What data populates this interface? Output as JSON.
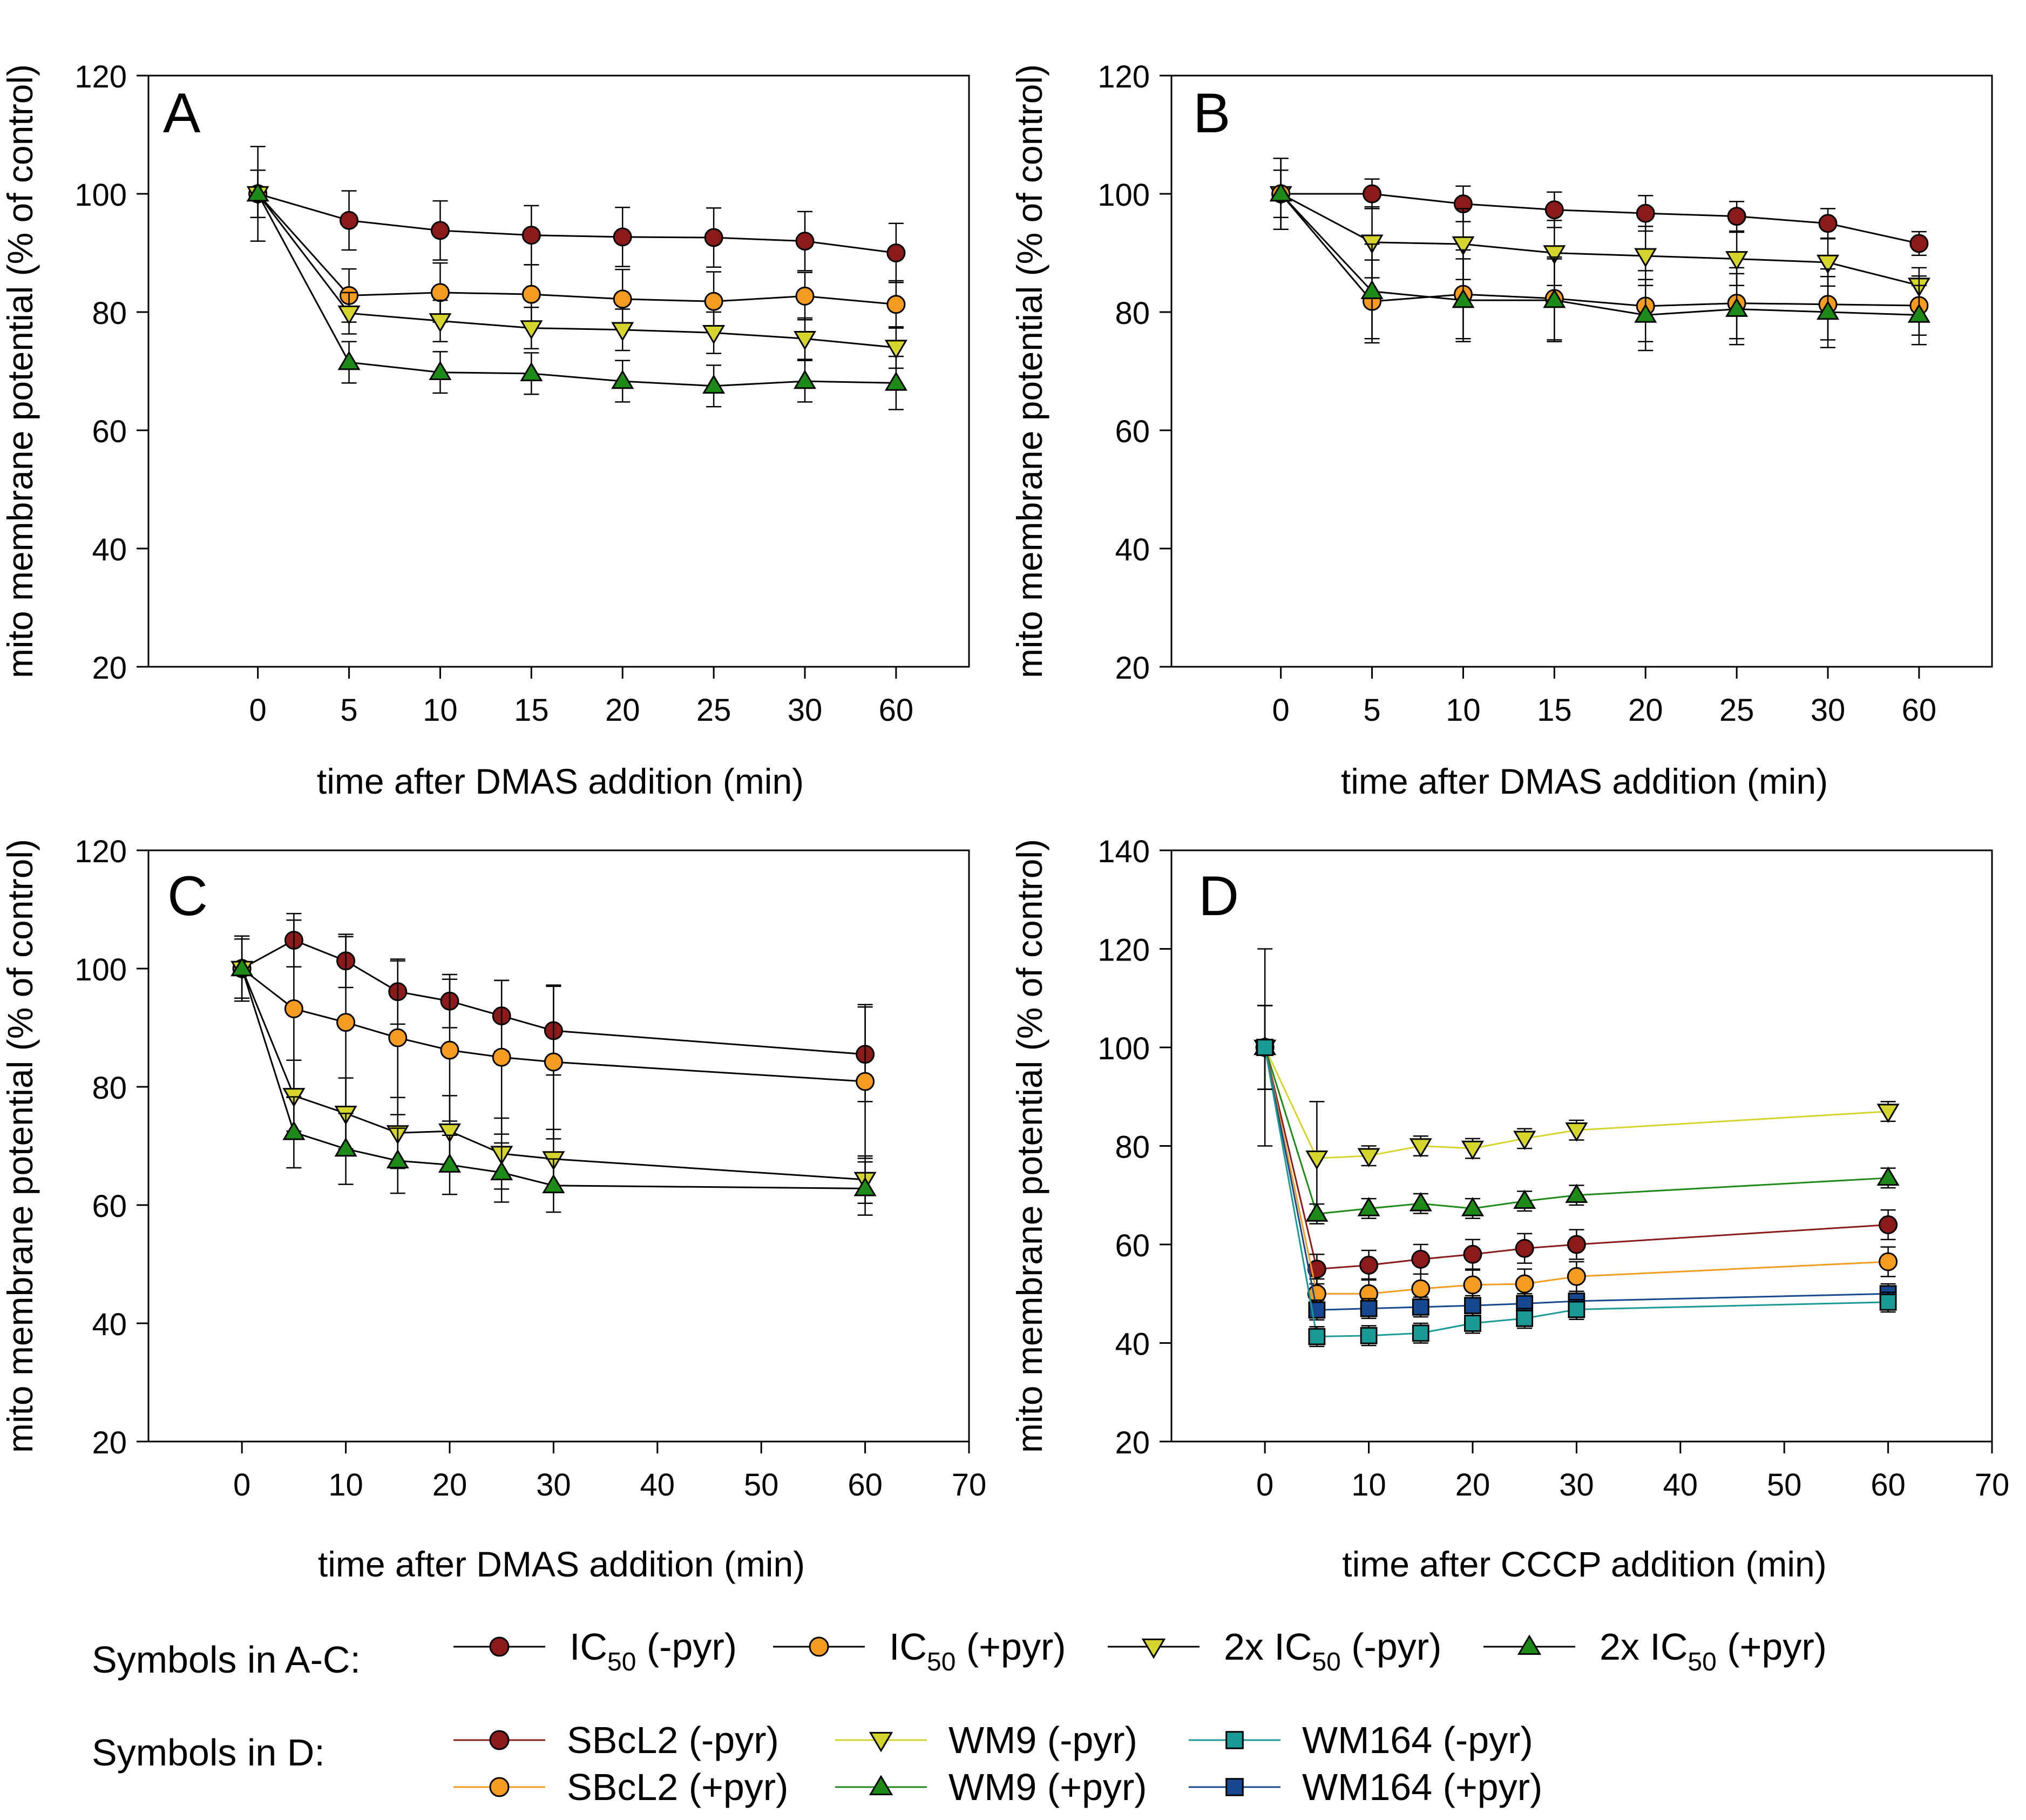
{
  "colors": {
    "ic50_minus": "#8B1A1A",
    "ic50_plus": "#F39C1F",
    "x2_minus": "#D6D52E",
    "x2_plus": "#1E8A18",
    "sbcl2_minus": "#8B1A1A",
    "sbcl2_plus": "#F39C1F",
    "wm9_minus": "#D6D52E",
    "wm9_plus": "#1E8A18",
    "wm164_minus": "#1A9A96",
    "wm164_plus": "#17478F"
  },
  "chart_data": [
    {
      "panel": "A",
      "type": "line",
      "ylabel": "mito membrane potential (% of control)",
      "xlabel": "time after DMAS addition (min)",
      "categorical_x": true,
      "xticks": [
        "0",
        "5",
        "10",
        "15",
        "20",
        "25",
        "30",
        "60"
      ],
      "ylim": [
        20,
        120
      ],
      "yticks": [
        20,
        40,
        60,
        80,
        100,
        120
      ],
      "series": [
        {
          "name": "IC50 (-pyr)",
          "color_key": "ic50_minus",
          "marker": "circle",
          "values": [
            100,
            95.5,
            93.8,
            93,
            92.7,
            92.6,
            92,
            90
          ],
          "errors": [
            4,
            5,
            5,
            5,
            5,
            5,
            5,
            5
          ]
        },
        {
          "name": "IC50 (+pyr)",
          "color_key": "ic50_plus",
          "marker": "circle",
          "values": [
            100,
            82.8,
            83.3,
            83,
            82.2,
            81.8,
            82.7,
            81.3
          ],
          "errors": [
            8,
            4.5,
            5,
            5,
            5,
            5,
            4,
            4
          ]
        },
        {
          "name": "2x IC50 (-pyr)",
          "color_key": "x2_minus",
          "marker": "triangle-down",
          "values": [
            100,
            79.8,
            78.5,
            77.3,
            77,
            76.5,
            75.5,
            74
          ],
          "errors": [
            4,
            3.5,
            3.5,
            3.5,
            3.5,
            3.5,
            3.5,
            3.5
          ]
        },
        {
          "name": "2x IC50 (+pyr)",
          "color_key": "x2_plus",
          "marker": "triangle-up",
          "values": [
            100,
            71.5,
            69.8,
            69.6,
            68.3,
            67.5,
            68.3,
            68
          ],
          "errors": [
            4,
            3.5,
            3.5,
            3.5,
            3.5,
            3.5,
            3.5,
            4.5
          ]
        }
      ]
    },
    {
      "panel": "B",
      "type": "line",
      "ylabel": "mito membrane potential (% of control)",
      "xlabel": "time after DMAS addition (min)",
      "categorical_x": true,
      "xticks": [
        "0",
        "5",
        "10",
        "15",
        "20",
        "25",
        "30",
        "60"
      ],
      "ylim": [
        20,
        120
      ],
      "yticks": [
        20,
        40,
        60,
        80,
        100,
        120
      ],
      "series": [
        {
          "name": "IC50 (-pyr)",
          "color_key": "ic50_minus",
          "marker": "circle",
          "values": [
            100,
            100,
            98.3,
            97.3,
            96.7,
            96.2,
            95,
            91.6
          ],
          "errors": [
            4,
            2.5,
            3,
            3,
            3,
            2.5,
            2.5,
            2
          ]
        },
        {
          "name": "2x IC50 (-pyr)",
          "color_key": "x2_minus",
          "marker": "triangle-down",
          "values": [
            100,
            91.8,
            91.5,
            90,
            89.5,
            89,
            88.4,
            84.5
          ],
          "errors": [
            6,
            6,
            6,
            5.5,
            5,
            4.5,
            4,
            3
          ]
        },
        {
          "name": "IC50 (+pyr)",
          "color_key": "ic50_plus",
          "marker": "circle",
          "values": [
            100,
            81.8,
            83,
            82.3,
            81,
            81.5,
            81.3,
            81.1
          ],
          "errors": [
            6,
            7,
            7.5,
            7,
            6,
            6,
            6,
            5
          ]
        },
        {
          "name": "2x IC50 (+pyr)",
          "color_key": "x2_plus",
          "marker": "triangle-up",
          "values": [
            100,
            83.5,
            82,
            82,
            79.5,
            80.5,
            80,
            79.5
          ],
          "errors": [
            6,
            8,
            7,
            7,
            6,
            6,
            6,
            5
          ]
        }
      ]
    },
    {
      "panel": "C",
      "type": "line",
      "ylabel": "mito membrane potential (% of control)",
      "xlabel": "time after DMAS addition (min)",
      "categorical_x": false,
      "xlim": [
        -9,
        70
      ],
      "xticks": [
        0,
        10,
        20,
        30,
        40,
        50,
        60,
        70
      ],
      "ylim": [
        20,
        120
      ],
      "yticks": [
        20,
        40,
        60,
        80,
        100,
        120
      ],
      "series": [
        {
          "name": "IC50 (-pyr)",
          "color_key": "ic50_minus",
          "marker": "circle",
          "x": [
            0,
            5,
            10,
            15,
            20,
            25,
            30,
            60
          ],
          "values": [
            100,
            104.8,
            101.3,
            96.1,
            94.5,
            92,
            89.5,
            85.5
          ],
          "errors": [
            5.5,
            4.5,
            4.5,
            5.5,
            4.5,
            6,
            7.5,
            8
          ]
        },
        {
          "name": "IC50 (+pyr)",
          "color_key": "ic50_plus",
          "marker": "circle",
          "x": [
            0,
            5,
            10,
            15,
            20,
            25,
            30,
            60
          ],
          "values": [
            100,
            93.2,
            90.9,
            88.3,
            86.2,
            85,
            84.2,
            80.9
          ],
          "errors": [
            5.5,
            15,
            14.5,
            13,
            12,
            13,
            13,
            13
          ]
        },
        {
          "name": "2x IC50 (-pyr)",
          "color_key": "x2_minus",
          "marker": "triangle-down",
          "x": [
            0,
            5,
            10,
            15,
            20,
            25,
            30,
            60
          ],
          "values": [
            100,
            78.5,
            75.5,
            72.2,
            72.5,
            68.7,
            67.8,
            64.3
          ],
          "errors": [
            5,
            6,
            6,
            6,
            6,
            6,
            5,
            4
          ]
        },
        {
          "name": "2x IC50 (+pyr)",
          "color_key": "x2_plus",
          "marker": "triangle-up",
          "x": [
            0,
            5,
            10,
            15,
            20,
            25,
            30,
            60
          ],
          "values": [
            100,
            72.3,
            69.5,
            67.5,
            66.8,
            65.5,
            63.3,
            62.8
          ],
          "errors": [
            5,
            6,
            6,
            5.5,
            5,
            5,
            4.5,
            4.5
          ]
        }
      ]
    },
    {
      "panel": "D",
      "type": "line",
      "ylabel": "mito membrane potential (% of control)",
      "xlabel": "time after CCCP addition (min)",
      "categorical_x": false,
      "xlim": [
        -9,
        70
      ],
      "xticks": [
        0,
        10,
        20,
        30,
        40,
        50,
        60,
        70
      ],
      "ylim": [
        20,
        140
      ],
      "yticks": [
        20,
        40,
        60,
        80,
        100,
        120,
        140
      ],
      "series": [
        {
          "name": "WM9 (-pyr)",
          "color_key": "wm9_minus",
          "marker": "triangle-down",
          "x": [
            0,
            5,
            10,
            15,
            20,
            25,
            30,
            60
          ],
          "values": [
            100,
            77.5,
            78,
            80,
            79.5,
            81.5,
            83.2,
            87
          ],
          "errors": [
            20,
            11.5,
            2,
            2,
            2,
            2,
            2,
            2
          ]
        },
        {
          "name": "WM9 (+pyr)",
          "color_key": "wm9_plus",
          "marker": "triangle-up",
          "x": [
            0,
            5,
            10,
            15,
            20,
            25,
            30,
            60
          ],
          "values": [
            100,
            66.2,
            67.3,
            68.3,
            67.3,
            68.8,
            70,
            73.5
          ],
          "errors": [
            8.5,
            2,
            2,
            2,
            2,
            2,
            2,
            2
          ]
        },
        {
          "name": "SBcL2 (-pyr)",
          "color_key": "sbcl2_minus",
          "marker": "circle",
          "x": [
            0,
            5,
            10,
            15,
            20,
            25,
            30,
            60
          ],
          "values": [
            100,
            55,
            55.8,
            57,
            58,
            59.2,
            60,
            64
          ],
          "errors": [
            8.5,
            3,
            3,
            3,
            3,
            3,
            3,
            3
          ]
        },
        {
          "name": "SBcL2 (+pyr)",
          "color_key": "sbcl2_plus",
          "marker": "circle",
          "x": [
            0,
            5,
            10,
            15,
            20,
            25,
            30,
            60
          ],
          "values": [
            100,
            50,
            50,
            51,
            51.8,
            52,
            53.5,
            56.5
          ],
          "errors": [
            8.5,
            3,
            3,
            3,
            3,
            3,
            3,
            3
          ]
        },
        {
          "name": "WM164 (+pyr)",
          "color_key": "wm164_plus",
          "marker": "square",
          "x": [
            0,
            5,
            10,
            15,
            20,
            25,
            30,
            60
          ],
          "values": [
            100,
            46.7,
            47,
            47.3,
            47.6,
            48,
            48.5,
            50
          ],
          "errors": [
            8.5,
            2,
            2,
            2,
            2,
            2,
            2,
            2
          ]
        },
        {
          "name": "WM164 (-pyr)",
          "color_key": "wm164_minus",
          "marker": "square",
          "x": [
            0,
            5,
            10,
            15,
            20,
            25,
            30,
            60
          ],
          "values": [
            100,
            41.3,
            41.5,
            42,
            44,
            45,
            46.8,
            48.3
          ],
          "errors": [
            8.5,
            2,
            2,
            2,
            2,
            2,
            2,
            2
          ]
        }
      ]
    }
  ],
  "legend": {
    "ac_title": "Symbols in A-C:",
    "d_title": "Symbols in D:",
    "ac_items": [
      {
        "prefix": "IC",
        "sub": "50",
        "suffix": " (-pyr)",
        "color_key": "ic50_minus",
        "marker": "circle"
      },
      {
        "prefix": "IC",
        "sub": "50",
        "suffix": " (+pyr)",
        "color_key": "ic50_plus",
        "marker": "circle"
      },
      {
        "prefix": "2x IC",
        "sub": "50",
        "suffix": " (-pyr)",
        "color_key": "x2_minus",
        "marker": "triangle-down"
      },
      {
        "prefix": "2x IC",
        "sub": "50",
        "suffix": " (+pyr)",
        "color_key": "x2_plus",
        "marker": "triangle-up"
      }
    ],
    "d_items": [
      {
        "label": "SBcL2 (-pyr)",
        "color_key": "sbcl2_minus",
        "marker": "circle"
      },
      {
        "label": "WM9 (-pyr)",
        "color_key": "wm9_minus",
        "marker": "triangle-down"
      },
      {
        "label": "WM164 (-pyr)",
        "color_key": "wm164_minus",
        "marker": "square"
      },
      {
        "label": "SBcL2 (+pyr)",
        "color_key": "sbcl2_plus",
        "marker": "circle"
      },
      {
        "label": "WM9 (+pyr)",
        "color_key": "wm9_plus",
        "marker": "triangle-up"
      },
      {
        "label": "WM164 (+pyr)",
        "color_key": "wm164_plus",
        "marker": "square"
      }
    ]
  }
}
